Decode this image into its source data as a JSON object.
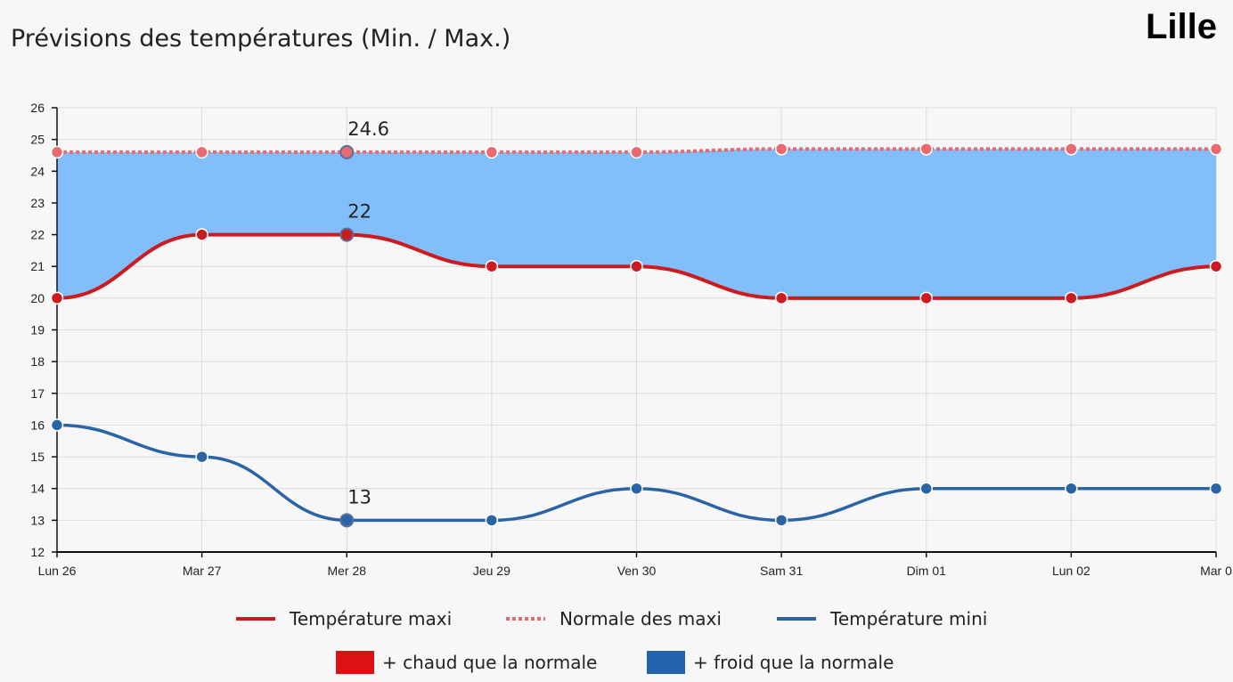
{
  "title": "Prévisions des températures (Min. / Max.)",
  "city": "Lille",
  "chart_data": {
    "type": "line",
    "title": "Prévisions des températures (Min. / Max.)",
    "categories": [
      "Lun 26",
      "Mar 27",
      "Mer 28",
      "Jeu 29",
      "Ven 30",
      "Sam 31",
      "Dim 01",
      "Lun 02",
      "Mar 0"
    ],
    "ylim": [
      12,
      26
    ],
    "yticks": [
      12,
      13,
      14,
      15,
      16,
      17,
      18,
      19,
      20,
      21,
      22,
      23,
      24,
      25,
      26
    ],
    "grid": true,
    "series": [
      {
        "name": "Température maxi",
        "values": [
          20,
          22,
          22,
          21,
          21,
          20,
          20,
          20,
          21
        ],
        "color": "#cc1a1f",
        "style": "solid"
      },
      {
        "name": "Normale des maxi",
        "values": [
          24.6,
          24.6,
          24.6,
          24.6,
          24.6,
          24.7,
          24.7,
          24.7,
          24.7
        ],
        "color": "#e86a6e",
        "style": "dotted"
      },
      {
        "name": "Température mini",
        "values": [
          16,
          15,
          13,
          13,
          14,
          13,
          14,
          14,
          14
        ],
        "color": "#2a64a4",
        "style": "solid"
      }
    ],
    "band_fill_color": "#82bdfc",
    "highlighted_index": 2,
    "data_labels": [
      "24.6",
      "22",
      "13"
    ],
    "legend": {
      "placement": "bottom",
      "lines": [
        "Température maxi",
        "Normale des maxi",
        "Température mini"
      ],
      "swatches": [
        {
          "label": "+ chaud que la normale",
          "color": "#dd1111"
        },
        {
          "label": "+ froid que la normale",
          "color": "#2462ad"
        }
      ]
    }
  }
}
